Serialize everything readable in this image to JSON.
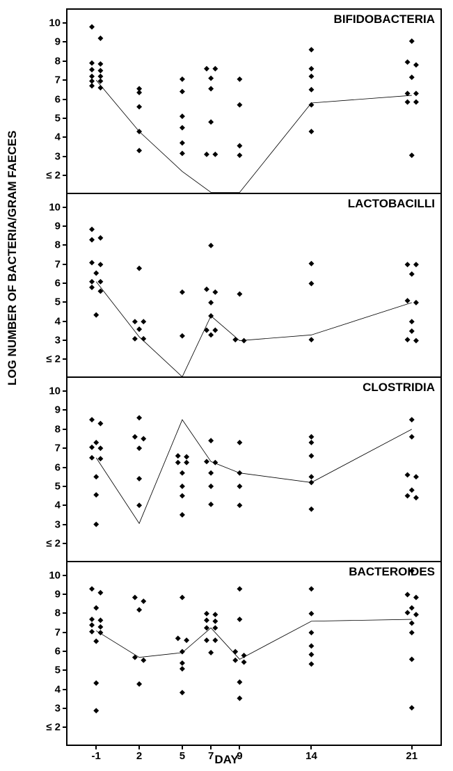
{
  "global": {
    "y_axis_label": "LOG NUMBER OF BACTERIA/GRAM FAECES",
    "x_axis_label": "DAY",
    "x_values": [
      -1,
      2,
      5,
      7,
      9,
      14,
      21
    ],
    "x_tick_labels": [
      "-1",
      "2",
      "5",
      "7",
      "9",
      "14",
      "21"
    ],
    "y_tick_values": [
      2,
      3,
      4,
      5,
      6,
      7,
      8,
      9,
      10
    ],
    "y_tick_labels": [
      "≤ 2",
      "3",
      "4",
      "5",
      "6",
      "7",
      "8",
      "9",
      "10"
    ],
    "y_min": 1.1,
    "y_max": 10.7,
    "x_min": -3,
    "x_max": 23,
    "marker_size": 8,
    "marker_color": "#000000",
    "line_color": "#000000",
    "line_width": 2.2,
    "background_color": "#ffffff",
    "border_color": "#000000",
    "title_fontsize": 17,
    "tick_fontsize": 15,
    "axis_label_fontsize": 17
  },
  "panels": [
    {
      "title": "BIFIDOBACTERIA",
      "trend_line": [
        {
          "x": -1,
          "y": 7.0
        },
        {
          "x": 2,
          "y": 4.3
        },
        {
          "x": 5,
          "y": 2.2
        },
        {
          "x": 7,
          "y": 1.1
        },
        {
          "x": 9,
          "y": 1.1
        },
        {
          "x": 14,
          "y": 5.8
        },
        {
          "x": 21,
          "y": 6.2
        }
      ],
      "points": [
        {
          "x": -1.3,
          "y": 9.8
        },
        {
          "x": -0.7,
          "y": 9.2
        },
        {
          "x": -1.3,
          "y": 7.9
        },
        {
          "x": -0.7,
          "y": 7.85
        },
        {
          "x": -1.3,
          "y": 7.55
        },
        {
          "x": -0.7,
          "y": 7.5
        },
        {
          "x": -1.3,
          "y": 7.2
        },
        {
          "x": -0.7,
          "y": 7.2
        },
        {
          "x": -1.3,
          "y": 6.95
        },
        {
          "x": -0.7,
          "y": 6.95
        },
        {
          "x": -1.3,
          "y": 6.7
        },
        {
          "x": -0.7,
          "y": 6.6
        },
        {
          "x": 2,
          "y": 6.55
        },
        {
          "x": 2,
          "y": 6.35
        },
        {
          "x": 2,
          "y": 5.6
        },
        {
          "x": 2,
          "y": 4.3
        },
        {
          "x": 2,
          "y": 3.3
        },
        {
          "x": 5,
          "y": 7.05
        },
        {
          "x": 5,
          "y": 6.4
        },
        {
          "x": 5,
          "y": 5.1
        },
        {
          "x": 5,
          "y": 4.5
        },
        {
          "x": 5,
          "y": 3.7
        },
        {
          "x": 5,
          "y": 3.15
        },
        {
          "x": 6.7,
          "y": 7.6
        },
        {
          "x": 7.3,
          "y": 7.6
        },
        {
          "x": 7,
          "y": 7.1
        },
        {
          "x": 7,
          "y": 6.55
        },
        {
          "x": 7,
          "y": 4.8
        },
        {
          "x": 6.7,
          "y": 3.1
        },
        {
          "x": 7.3,
          "y": 3.1
        },
        {
          "x": 9,
          "y": 7.05
        },
        {
          "x": 9,
          "y": 5.7
        },
        {
          "x": 9,
          "y": 3.55
        },
        {
          "x": 9,
          "y": 3.05
        },
        {
          "x": 14,
          "y": 8.6
        },
        {
          "x": 14,
          "y": 7.6
        },
        {
          "x": 14,
          "y": 7.2
        },
        {
          "x": 14,
          "y": 6.5
        },
        {
          "x": 14,
          "y": 5.7
        },
        {
          "x": 14,
          "y": 4.3
        },
        {
          "x": 21,
          "y": 9.05
        },
        {
          "x": 20.7,
          "y": 7.95
        },
        {
          "x": 21.3,
          "y": 7.8
        },
        {
          "x": 21,
          "y": 7.15
        },
        {
          "x": 20.7,
          "y": 6.3
        },
        {
          "x": 21.3,
          "y": 6.3
        },
        {
          "x": 20.7,
          "y": 5.85
        },
        {
          "x": 21.3,
          "y": 5.85
        },
        {
          "x": 21,
          "y": 3.05
        }
      ]
    },
    {
      "title": "LACTOBACILLI",
      "trend_line": [
        {
          "x": -1,
          "y": 6.1
        },
        {
          "x": 2,
          "y": 3.2
        },
        {
          "x": 5,
          "y": 1.1
        },
        {
          "x": 7,
          "y": 4.3
        },
        {
          "x": 9,
          "y": 3.0
        },
        {
          "x": 14,
          "y": 3.3
        },
        {
          "x": 21,
          "y": 5.0
        }
      ],
      "points": [
        {
          "x": -1.3,
          "y": 8.85
        },
        {
          "x": -0.7,
          "y": 8.4
        },
        {
          "x": -1.3,
          "y": 8.3
        },
        {
          "x": -1.3,
          "y": 7.1
        },
        {
          "x": -0.7,
          "y": 7.0
        },
        {
          "x": -1,
          "y": 6.55
        },
        {
          "x": -1.3,
          "y": 6.1
        },
        {
          "x": -0.7,
          "y": 6.1
        },
        {
          "x": -1.3,
          "y": 5.8
        },
        {
          "x": -0.7,
          "y": 5.6
        },
        {
          "x": -1,
          "y": 4.35
        },
        {
          "x": 2,
          "y": 6.8
        },
        {
          "x": 1.7,
          "y": 4.0
        },
        {
          "x": 2.3,
          "y": 4.0
        },
        {
          "x": 2,
          "y": 3.6
        },
        {
          "x": 1.7,
          "y": 3.1
        },
        {
          "x": 2.3,
          "y": 3.1
        },
        {
          "x": 5,
          "y": 5.55
        },
        {
          "x": 5,
          "y": 3.25
        },
        {
          "x": 7,
          "y": 8.0
        },
        {
          "x": 6.7,
          "y": 5.7
        },
        {
          "x": 7.3,
          "y": 5.55
        },
        {
          "x": 7,
          "y": 5.0
        },
        {
          "x": 7,
          "y": 4.3
        },
        {
          "x": 6.7,
          "y": 3.55
        },
        {
          "x": 7.3,
          "y": 3.55
        },
        {
          "x": 7,
          "y": 3.3
        },
        {
          "x": 9,
          "y": 5.45
        },
        {
          "x": 8.7,
          "y": 3.05
        },
        {
          "x": 9.3,
          "y": 3.0
        },
        {
          "x": 14,
          "y": 7.05
        },
        {
          "x": 14,
          "y": 6.0
        },
        {
          "x": 14,
          "y": 3.05
        },
        {
          "x": 20.7,
          "y": 7.0
        },
        {
          "x": 21.3,
          "y": 7.0
        },
        {
          "x": 21,
          "y": 6.5
        },
        {
          "x": 20.7,
          "y": 5.1
        },
        {
          "x": 21.3,
          "y": 5.0
        },
        {
          "x": 21,
          "y": 4.0
        },
        {
          "x": 21,
          "y": 3.5
        },
        {
          "x": 20.7,
          "y": 3.05
        },
        {
          "x": 21.3,
          "y": 3.0
        }
      ]
    },
    {
      "title": "CLOSTRIDIA",
      "trend_line": [
        {
          "x": -1,
          "y": 6.5
        },
        {
          "x": 2,
          "y": 3.05
        },
        {
          "x": 5,
          "y": 8.5
        },
        {
          "x": 7,
          "y": 6.3
        },
        {
          "x": 9,
          "y": 5.7
        },
        {
          "x": 14,
          "y": 5.2
        },
        {
          "x": 21,
          "y": 8.0
        }
      ],
      "points": [
        {
          "x": -1.3,
          "y": 8.5
        },
        {
          "x": -0.7,
          "y": 8.3
        },
        {
          "x": -1,
          "y": 7.3
        },
        {
          "x": -1.3,
          "y": 7.05
        },
        {
          "x": -0.7,
          "y": 7.0
        },
        {
          "x": -1.3,
          "y": 6.5
        },
        {
          "x": -0.7,
          "y": 6.45
        },
        {
          "x": -1,
          "y": 5.5
        },
        {
          "x": -1,
          "y": 4.55
        },
        {
          "x": -1,
          "y": 3.0
        },
        {
          "x": 2,
          "y": 8.6
        },
        {
          "x": 1.7,
          "y": 7.6
        },
        {
          "x": 2.3,
          "y": 7.5
        },
        {
          "x": 2,
          "y": 7.0
        },
        {
          "x": 2,
          "y": 5.4
        },
        {
          "x": 2,
          "y": 4.0
        },
        {
          "x": 4.7,
          "y": 6.6
        },
        {
          "x": 5.3,
          "y": 6.55
        },
        {
          "x": 4.7,
          "y": 6.25
        },
        {
          "x": 5.3,
          "y": 6.25
        },
        {
          "x": 5,
          "y": 5.7
        },
        {
          "x": 5,
          "y": 5.0
        },
        {
          "x": 5,
          "y": 4.5
        },
        {
          "x": 5,
          "y": 3.5
        },
        {
          "x": 7,
          "y": 7.4
        },
        {
          "x": 6.7,
          "y": 6.3
        },
        {
          "x": 7.3,
          "y": 6.25
        },
        {
          "x": 7,
          "y": 5.7
        },
        {
          "x": 7,
          "y": 5.0
        },
        {
          "x": 7,
          "y": 4.05
        },
        {
          "x": 9,
          "y": 7.3
        },
        {
          "x": 9,
          "y": 5.7
        },
        {
          "x": 9,
          "y": 5.0
        },
        {
          "x": 9,
          "y": 4.0
        },
        {
          "x": 14,
          "y": 7.6
        },
        {
          "x": 14,
          "y": 7.3
        },
        {
          "x": 14,
          "y": 6.6
        },
        {
          "x": 14,
          "y": 5.5
        },
        {
          "x": 14,
          "y": 5.2
        },
        {
          "x": 14,
          "y": 3.8
        },
        {
          "x": 21,
          "y": 8.5
        },
        {
          "x": 21,
          "y": 7.6
        },
        {
          "x": 20.7,
          "y": 5.6
        },
        {
          "x": 21.3,
          "y": 5.5
        },
        {
          "x": 21,
          "y": 4.8
        },
        {
          "x": 20.7,
          "y": 4.5
        },
        {
          "x": 21.3,
          "y": 4.4
        }
      ]
    },
    {
      "title": "BACTEROIDES",
      "trend_line": [
        {
          "x": -1,
          "y": 7.1
        },
        {
          "x": 2,
          "y": 5.7
        },
        {
          "x": 5,
          "y": 5.95
        },
        {
          "x": 7,
          "y": 7.25
        },
        {
          "x": 9,
          "y": 5.6
        },
        {
          "x": 14,
          "y": 7.6
        },
        {
          "x": 21,
          "y": 7.7
        }
      ],
      "points": [
        {
          "x": -1.3,
          "y": 9.3
        },
        {
          "x": -0.7,
          "y": 9.1
        },
        {
          "x": -1,
          "y": 8.3
        },
        {
          "x": -1.3,
          "y": 7.7
        },
        {
          "x": -0.7,
          "y": 7.65
        },
        {
          "x": -1.3,
          "y": 7.4
        },
        {
          "x": -0.7,
          "y": 7.3
        },
        {
          "x": -1.3,
          "y": 7.05
        },
        {
          "x": -0.7,
          "y": 7.0
        },
        {
          "x": -1,
          "y": 6.55
        },
        {
          "x": -1,
          "y": 4.35
        },
        {
          "x": -1,
          "y": 2.9
        },
        {
          "x": 1.7,
          "y": 8.85
        },
        {
          "x": 2.3,
          "y": 8.65
        },
        {
          "x": 2,
          "y": 8.2
        },
        {
          "x": 1.7,
          "y": 5.7
        },
        {
          "x": 2.3,
          "y": 5.55
        },
        {
          "x": 2,
          "y": 4.3
        },
        {
          "x": 5,
          "y": 8.85
        },
        {
          "x": 4.7,
          "y": 6.7
        },
        {
          "x": 5.3,
          "y": 6.6
        },
        {
          "x": 5,
          "y": 6.0
        },
        {
          "x": 5,
          "y": 5.4
        },
        {
          "x": 5,
          "y": 5.1
        },
        {
          "x": 5,
          "y": 3.85
        },
        {
          "x": 6.7,
          "y": 8.0
        },
        {
          "x": 7.3,
          "y": 7.95
        },
        {
          "x": 6.7,
          "y": 7.65
        },
        {
          "x": 7.3,
          "y": 7.6
        },
        {
          "x": 6.7,
          "y": 7.25
        },
        {
          "x": 7.3,
          "y": 7.25
        },
        {
          "x": 6.7,
          "y": 6.6
        },
        {
          "x": 7.3,
          "y": 6.6
        },
        {
          "x": 7,
          "y": 5.95
        },
        {
          "x": 9,
          "y": 9.3
        },
        {
          "x": 9,
          "y": 7.7
        },
        {
          "x": 8.7,
          "y": 6.0
        },
        {
          "x": 9.3,
          "y": 5.8
        },
        {
          "x": 8.7,
          "y": 5.55
        },
        {
          "x": 9.3,
          "y": 5.45
        },
        {
          "x": 9,
          "y": 4.4
        },
        {
          "x": 9,
          "y": 3.55
        },
        {
          "x": 14,
          "y": 9.3
        },
        {
          "x": 14,
          "y": 8.0
        },
        {
          "x": 14,
          "y": 7.0
        },
        {
          "x": 14,
          "y": 6.3
        },
        {
          "x": 14,
          "y": 5.85
        },
        {
          "x": 14,
          "y": 5.35
        },
        {
          "x": 21,
          "y": 10.25
        },
        {
          "x": 20.7,
          "y": 9.0
        },
        {
          "x": 21.3,
          "y": 8.85
        },
        {
          "x": 21,
          "y": 8.3
        },
        {
          "x": 20.7,
          "y": 8.05
        },
        {
          "x": 21.3,
          "y": 7.95
        },
        {
          "x": 21,
          "y": 7.5
        },
        {
          "x": 21,
          "y": 7.0
        },
        {
          "x": 21,
          "y": 5.6
        },
        {
          "x": 21,
          "y": 3.05
        }
      ]
    }
  ]
}
